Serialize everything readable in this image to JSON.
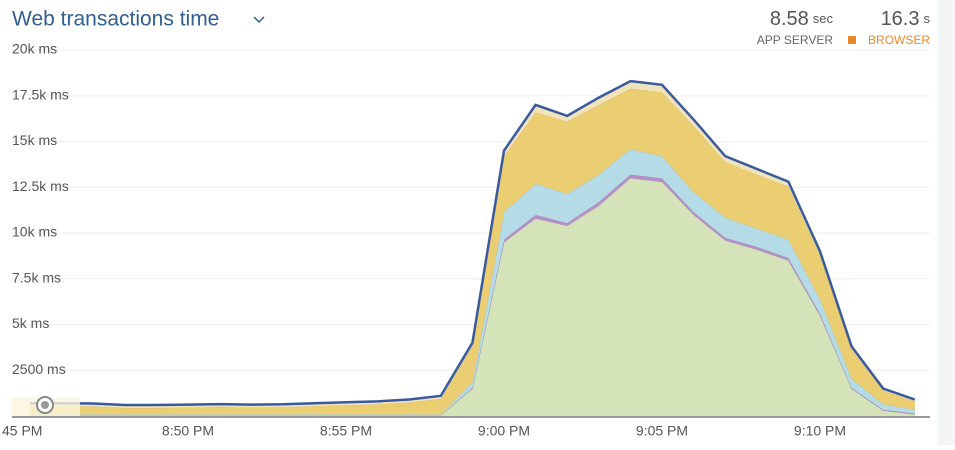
{
  "chart_data": {
    "type": "stacked-area",
    "title": "Web transactions time",
    "summary": [
      {
        "value": 8.58,
        "unit": "sec",
        "label": "APP SERVER"
      },
      {
        "value": 16.3,
        "unit": "s",
        "label": "BROWSER",
        "color": "#e8892c"
      }
    ],
    "categories": [
      "45 PM",
      null,
      null,
      null,
      null,
      "8:50 PM",
      null,
      null,
      null,
      null,
      "8:55 PM",
      null,
      null,
      null,
      null,
      "9:00 PM",
      null,
      null,
      null,
      null,
      "9:05 PM",
      null,
      null,
      null,
      null,
      "9:10 PM",
      null,
      null,
      null
    ],
    "series": [
      {
        "color": "#d5e3b9",
        "values": [
          50,
          50,
          50,
          50,
          50,
          50,
          50,
          50,
          50,
          50,
          50,
          50,
          50,
          50,
          1500,
          9500,
          10800,
          10400,
          11500,
          13000,
          12800,
          11000,
          9600,
          9100,
          8500,
          5500,
          1500,
          300,
          100
        ]
      },
      {
        "color": "#b690c8",
        "values": [
          0,
          0,
          0,
          0,
          0,
          0,
          0,
          0,
          0,
          0,
          0,
          0,
          0,
          0,
          50,
          150,
          200,
          150,
          200,
          200,
          200,
          150,
          150,
          150,
          150,
          100,
          50,
          50,
          50
        ]
      },
      {
        "color": "#b5dbe7",
        "values": [
          50,
          50,
          50,
          50,
          50,
          50,
          50,
          50,
          50,
          50,
          50,
          50,
          50,
          50,
          300,
          1500,
          1700,
          1600,
          1500,
          1400,
          1200,
          1100,
          1100,
          1000,
          1000,
          800,
          500,
          300,
          200
        ]
      },
      {
        "color": "#ebcd72",
        "values": [
          450,
          450,
          430,
          350,
          350,
          370,
          400,
          370,
          390,
          450,
          500,
          550,
          650,
          850,
          2000,
          3050,
          3900,
          3950,
          3800,
          3300,
          3500,
          3600,
          3050,
          2950,
          2900,
          2400,
          1600,
          750,
          450
        ]
      },
      {
        "color": "#f1e4ba",
        "stroke": "#3a5a9e",
        "values": [
          150,
          150,
          150,
          150,
          150,
          150,
          150,
          150,
          150,
          150,
          150,
          150,
          150,
          150,
          150,
          300,
          400,
          300,
          400,
          400,
          400,
          350,
          300,
          300,
          250,
          200,
          150,
          100,
          100
        ]
      }
    ],
    "ylim": [
      0,
      20000
    ],
    "yticks": [
      {
        "value": 2500,
        "label": "2500 ms"
      },
      {
        "value": 5000,
        "label": "5k ms"
      },
      {
        "value": 7500,
        "label": "7.5k ms"
      },
      {
        "value": 10000,
        "label": "10k ms"
      },
      {
        "value": 12500,
        "label": "12.5k ms"
      },
      {
        "value": 15000,
        "label": "15k ms"
      },
      {
        "value": 17500,
        "label": "17.5k ms"
      },
      {
        "value": 20000,
        "label": "20k ms"
      }
    ],
    "grid": true
  }
}
